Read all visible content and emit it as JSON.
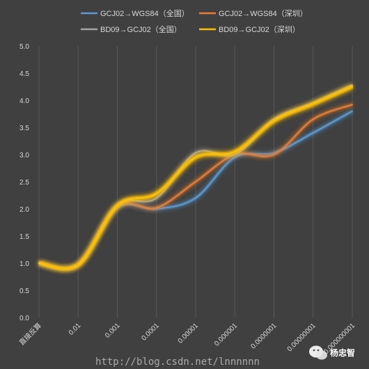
{
  "chart_data": {
    "type": "line",
    "title": "",
    "xlabel": "",
    "ylabel": "",
    "categories": [
      "直接反算",
      "0.01",
      "0.001",
      "0.0001",
      "0.00001",
      "0.000001",
      "0.0000001",
      "0.00000001",
      "0.000000001"
    ],
    "ylim": [
      0,
      5
    ],
    "y_ticks": [
      "0.0",
      "0.5",
      "1.0",
      "1.5",
      "2.0",
      "2.5",
      "3.0",
      "3.5",
      "4.0",
      "4.5",
      "5.0"
    ],
    "grid": "vertical",
    "legend_position": "top",
    "series": [
      {
        "name": "GCJ02→WGS84（全国）",
        "color": "#5b9bd5",
        "values": [
          1.0,
          0.97,
          2.02,
          2.0,
          2.2,
          2.95,
          3.03,
          3.4,
          3.8
        ]
      },
      {
        "name": "GCJ02→WGS84（深圳）",
        "color": "#ed7d31",
        "values": [
          1.0,
          0.97,
          2.04,
          2.02,
          2.5,
          3.0,
          3.0,
          3.65,
          3.92
        ]
      },
      {
        "name": "BD09→GCJ02（全国）",
        "color": "#a5a5a5",
        "values": [
          1.0,
          0.97,
          2.06,
          2.2,
          3.03,
          3.0,
          3.65,
          3.95,
          4.28
        ]
      },
      {
        "name": "BD09→GCJ02（深圳）",
        "color": "#ffc000",
        "values": [
          1.0,
          0.97,
          2.06,
          2.28,
          2.95,
          3.05,
          3.62,
          3.93,
          4.25
        ]
      }
    ]
  },
  "watermark": "http://blog.csdn.net/lnnnnnn",
  "badge": {
    "icon": "wechat-icon",
    "text": "杨忠智"
  }
}
